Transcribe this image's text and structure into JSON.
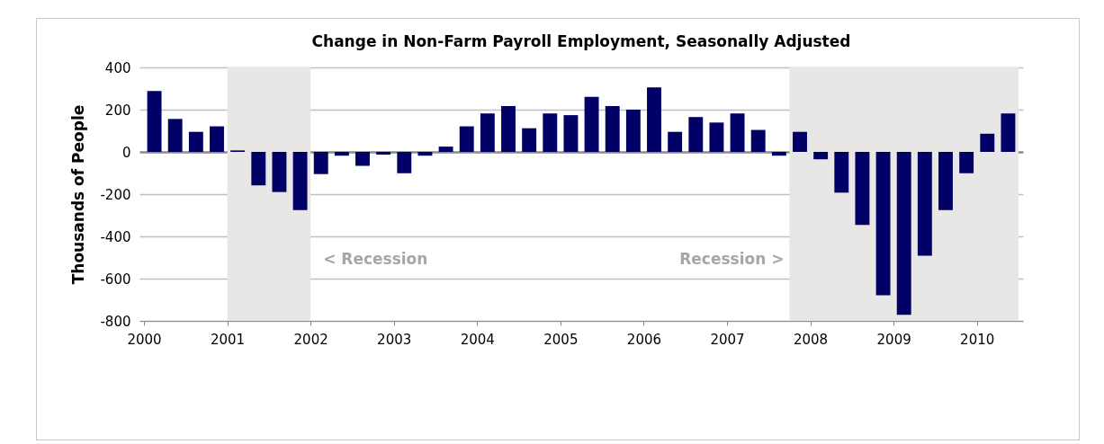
{
  "chart_data": {
    "type": "bar",
    "title": "Change in Non-Farm Payroll Employment, Seasonally Adjusted",
    "ylabel": "Thousands of People",
    "x": [
      2000.125,
      2000.375,
      2000.625,
      2000.875,
      2001.125,
      2001.375,
      2001.625,
      2001.875,
      2002.125,
      2002.375,
      2002.625,
      2002.875,
      2003.125,
      2003.375,
      2003.625,
      2003.875,
      2004.125,
      2004.375,
      2004.625,
      2004.875,
      2005.125,
      2005.375,
      2005.625,
      2005.875,
      2006.125,
      2006.375,
      2006.625,
      2006.875,
      2007.125,
      2007.375,
      2007.625,
      2007.875,
      2008.125,
      2008.375,
      2008.625,
      2008.875,
      2009.125,
      2009.375,
      2009.625,
      2009.875,
      2010.125,
      2010.375
    ],
    "values": [
      288,
      156,
      95,
      121,
      7,
      -158,
      -190,
      -276,
      -105,
      -18,
      -66,
      -13,
      -101,
      -18,
      25,
      121,
      182,
      217,
      112,
      182,
      174,
      261,
      217,
      200,
      305,
      95,
      165,
      139,
      182,
      104,
      -18,
      95,
      -35,
      -193,
      -346,
      -679,
      -771,
      -491,
      -276,
      -101,
      86,
      182
    ],
    "color": "#000066",
    "xlim": [
      2000,
      2010.5
    ],
    "xticks": [
      2000,
      2001,
      2002,
      2003,
      2004,
      2005,
      2006,
      2007,
      2008,
      2009,
      2010
    ],
    "ylim": [
      -800,
      400
    ],
    "yticks": [
      -800,
      -600,
      -400,
      -200,
      0,
      200,
      400
    ],
    "grid": "y",
    "bands": [
      {
        "axis": "x",
        "from": 2001,
        "to": 2002,
        "color": "#e8e7e5",
        "label": "< Recession"
      },
      {
        "axis": "x",
        "from": 2007.75,
        "to": 2010.5,
        "color": "#e8e7e5",
        "label": "Recession >"
      }
    ]
  }
}
